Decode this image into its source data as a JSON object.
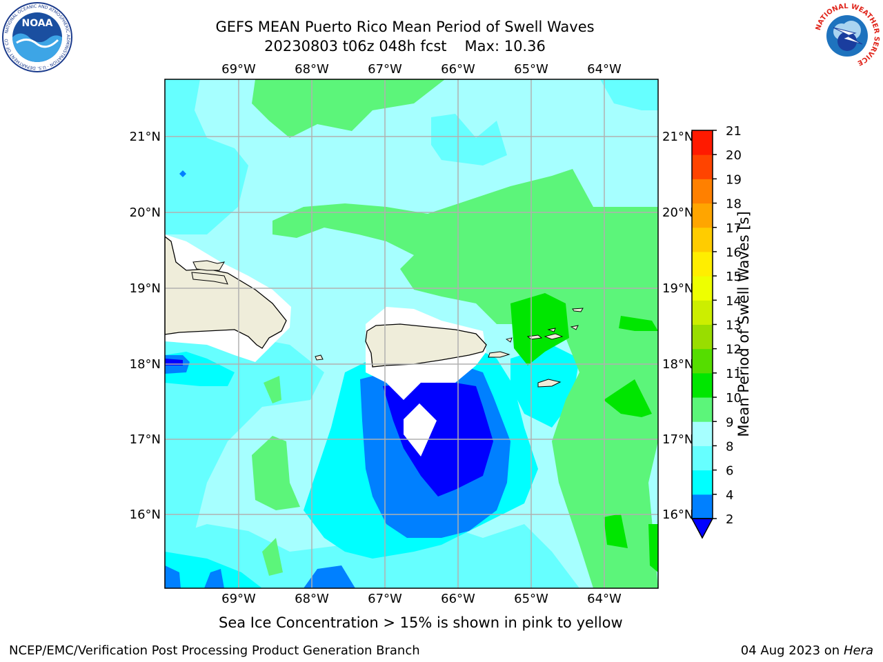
{
  "header": {
    "title_line1": "GEFS MEAN Puerto Rico Mean Period of Swell Waves",
    "title_line2_run": "20230803 t06z 048h fcst",
    "title_line2_max": "Max: 10.36"
  },
  "logos": {
    "left": {
      "icon": "noaa-logo-icon",
      "text": "NOAA",
      "ring_text": "NATIONAL OCEANIC AND ATMOSPHERIC ADMINISTRATION · U.S. DEPARTMENT OF COMMERCE"
    },
    "right": {
      "icon": "nws-logo-icon",
      "ring_text": "NATIONAL WEATHER SERVICE"
    }
  },
  "map": {
    "lon_labels": [
      "69°W",
      "68°W",
      "67°W",
      "66°W",
      "65°W",
      "64°W"
    ],
    "lat_labels": [
      "21°N",
      "20°N",
      "19°N",
      "18°N",
      "17°N",
      "16°N"
    ],
    "grid": true,
    "land_color": "#efedda",
    "coast_color": "#000000"
  },
  "colorbar": {
    "label": "Mean Period of Swell Waves [s]",
    "levels": [
      2,
      4,
      6,
      8,
      9,
      10,
      11,
      12,
      13,
      14,
      15,
      16,
      17,
      18,
      19,
      20,
      21
    ],
    "colors": [
      "#0000ff",
      "#0080ff",
      "#00ffff",
      "#66ffff",
      "#a6ffff",
      "#5cf57a",
      "#00e600",
      "#55dd00",
      "#99dd00",
      "#ccee00",
      "#eeff00",
      "#ffee00",
      "#ffcc00",
      "#ffa500",
      "#ff8000",
      "#ff4400",
      "#ff1a00",
      "#ff0000"
    ],
    "extend_min_color": "#0000ff"
  },
  "footer": {
    "ice_note": "Sea Ice Concentration > 15% is shown in pink to yellow",
    "left": "NCEP/EMC/Verification Post Processing Product Generation Branch",
    "right_date": "04 Aug 2023 on",
    "right_host": "Hera"
  }
}
